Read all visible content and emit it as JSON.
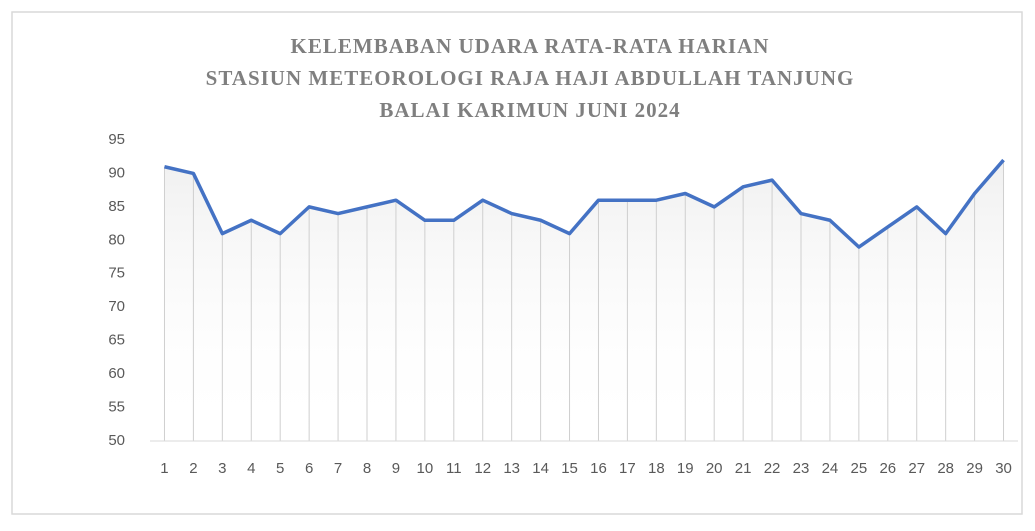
{
  "chart_data": {
    "type": "line",
    "title": [
      "KELEMBABAN UDARA RATA-RATA  HARIAN",
      "STASIUN METEOROLOGI RAJA HAJI ABDULLAH TANJUNG",
      "BALAI KARIMUN JUNI 2024"
    ],
    "categories": [
      "1",
      "2",
      "3",
      "4",
      "5",
      "6",
      "7",
      "8",
      "9",
      "10",
      "11",
      "12",
      "13",
      "14",
      "15",
      "16",
      "17",
      "18",
      "19",
      "20",
      "21",
      "22",
      "23",
      "24",
      "25",
      "26",
      "27",
      "28",
      "29",
      "30"
    ],
    "values": [
      91,
      90,
      81,
      83,
      81,
      85,
      84,
      85,
      86,
      83,
      83,
      86,
      84,
      83,
      81,
      86,
      86,
      86,
      87,
      85,
      88,
      89,
      84,
      83,
      79,
      82,
      85,
      81,
      87,
      92
    ],
    "color": "#4472c4",
    "ylim": [
      50,
      95
    ],
    "yticks": [
      50,
      55,
      60,
      65,
      70,
      75,
      80,
      85,
      90,
      95
    ],
    "drop_lines": true
  }
}
